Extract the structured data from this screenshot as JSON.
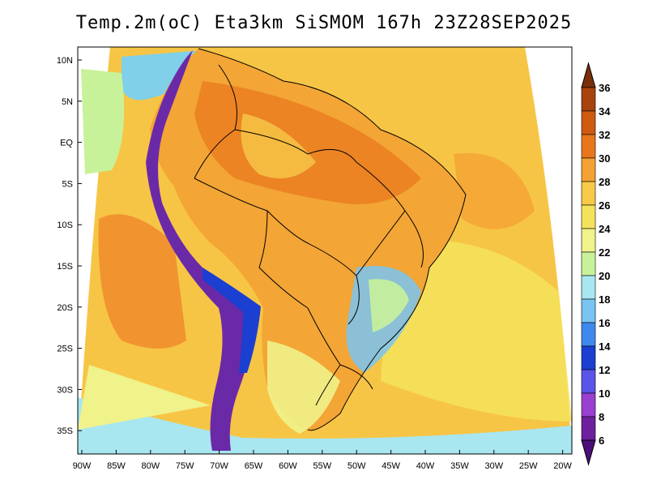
{
  "title": "Temp.2m(oC) Eta3km SiSMOM 167h 23Z28SEP2025",
  "lat_labels": [
    "10N",
    "5N",
    "EQ",
    "5S",
    "10S",
    "15S",
    "20S",
    "25S",
    "30S",
    "35S"
  ],
  "lon_labels": [
    "90W",
    "85W",
    "80W",
    "75W",
    "70W",
    "65W",
    "60W",
    "55W",
    "50W",
    "45W",
    "40W",
    "35W",
    "30W",
    "25W",
    "20W"
  ],
  "colorbar": {
    "labels": [
      "36",
      "34",
      "32",
      "30",
      "28",
      "26",
      "24",
      "22",
      "20",
      "18",
      "16",
      "14",
      "12",
      "10",
      "8",
      "6"
    ],
    "colors": [
      "#7a2f0a",
      "#a8420f",
      "#cf5a12",
      "#e8761c",
      "#f4a233",
      "#f7c949",
      "#f5e25c",
      "#f0f28a",
      "#c8f29a",
      "#a8e6f0",
      "#78c4f2",
      "#3f88ee",
      "#1b3fd0",
      "#5a54e8",
      "#9a3fd0",
      "#6e1f9e",
      "#4b0f7a"
    ]
  },
  "regions": {
    "ocean_fill": "#f7c545",
    "pacific_warm": "#f08e2e",
    "continent_fill": "#f3a535",
    "andes_fill": "#6a2aa8",
    "cool_south": "#78c4f2"
  }
}
